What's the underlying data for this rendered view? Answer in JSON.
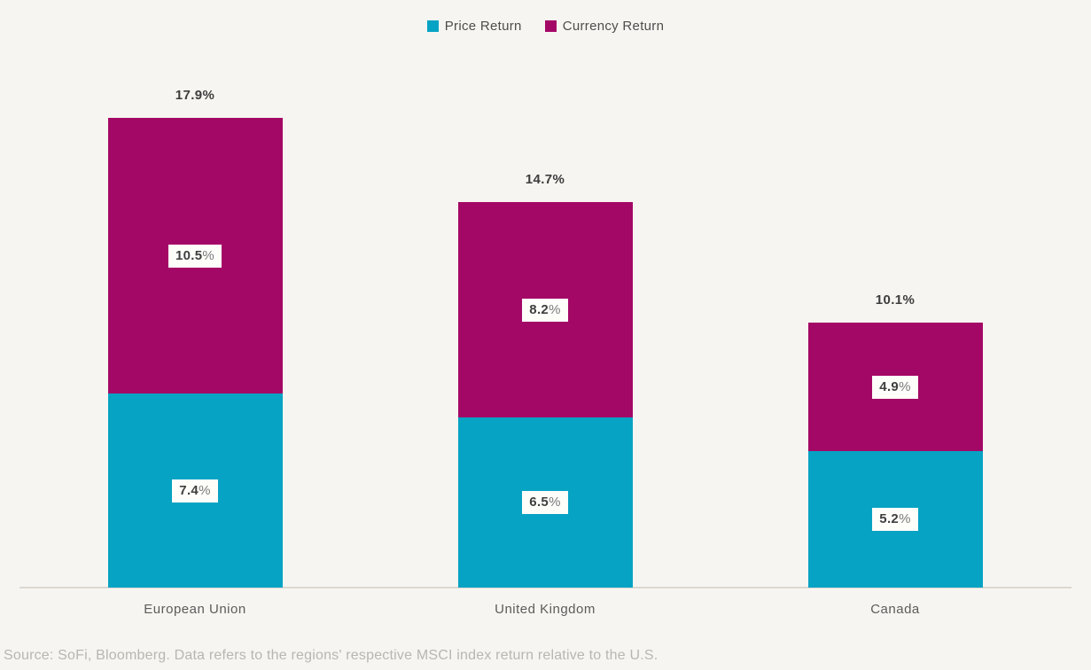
{
  "chart_data": {
    "type": "bar",
    "stacked": true,
    "categories": [
      "European Union",
      "United Kingdom",
      "Canada"
    ],
    "series": [
      {
        "name": "Price Return",
        "color": "#06a3c4",
        "values": [
          7.4,
          6.5,
          5.2
        ]
      },
      {
        "name": "Currency Return",
        "color": "#a40866",
        "values": [
          10.5,
          8.2,
          4.9
        ]
      }
    ],
    "totals": [
      17.9,
      14.7,
      10.1
    ],
    "value_suffix": "%",
    "ylim": [
      0,
      18
    ],
    "grid": false,
    "legend_position": "top"
  },
  "colors": {
    "background": "#f7f5f1",
    "axis_line": "#dcd9d2",
    "total_label_text": "#3d3d3d",
    "category_text": "#5c5c5c",
    "source_text": "#b8b6b0",
    "chip_background": "#fdfdfa"
  },
  "source_note": "Source: SoFi, Bloomberg. Data refers to the regions' respective MSCI index return relative to the U.S."
}
